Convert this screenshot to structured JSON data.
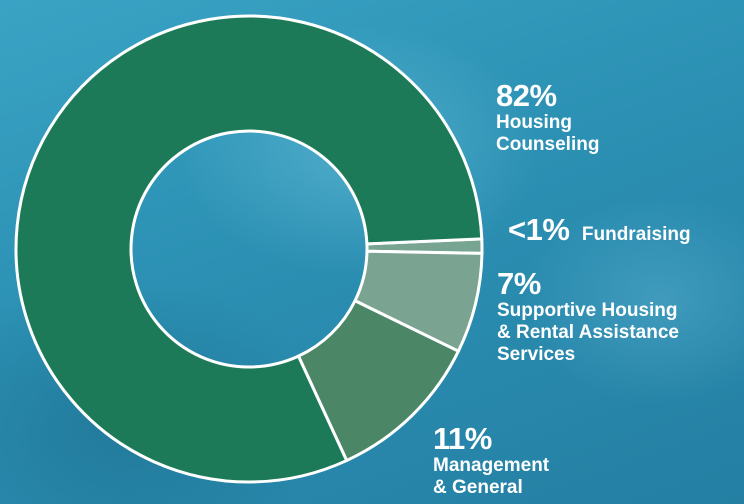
{
  "colors": {
    "background": "#2a93b5",
    "ring_stroke": "#ffffff",
    "slice_colors": [
      "#1d7a58",
      "#78a592",
      "#7aa392",
      "#4b8667"
    ]
  },
  "chart_data": {
    "type": "pie",
    "variant": "donut",
    "labels": [
      "Housing Counseling",
      "Fundraising",
      "Supportive Housing & Rental Assistance Services",
      "Management & General"
    ],
    "values": [
      82,
      1,
      7,
      11
    ],
    "display_values": [
      "82%",
      "<1%",
      "7%",
      "11%"
    ],
    "legend": "none"
  },
  "labels": {
    "housing": {
      "pct": "82%",
      "text": [
        "Housing",
        "Counseling"
      ]
    },
    "fundraising": {
      "pct": "<1%",
      "text": "Fundraising"
    },
    "supportive": {
      "pct": "7%",
      "text": [
        "Supportive Housing",
        "& Rental Assistance",
        "Services"
      ]
    },
    "management": {
      "pct": "11%",
      "text": [
        "Management",
        "& General"
      ]
    }
  }
}
